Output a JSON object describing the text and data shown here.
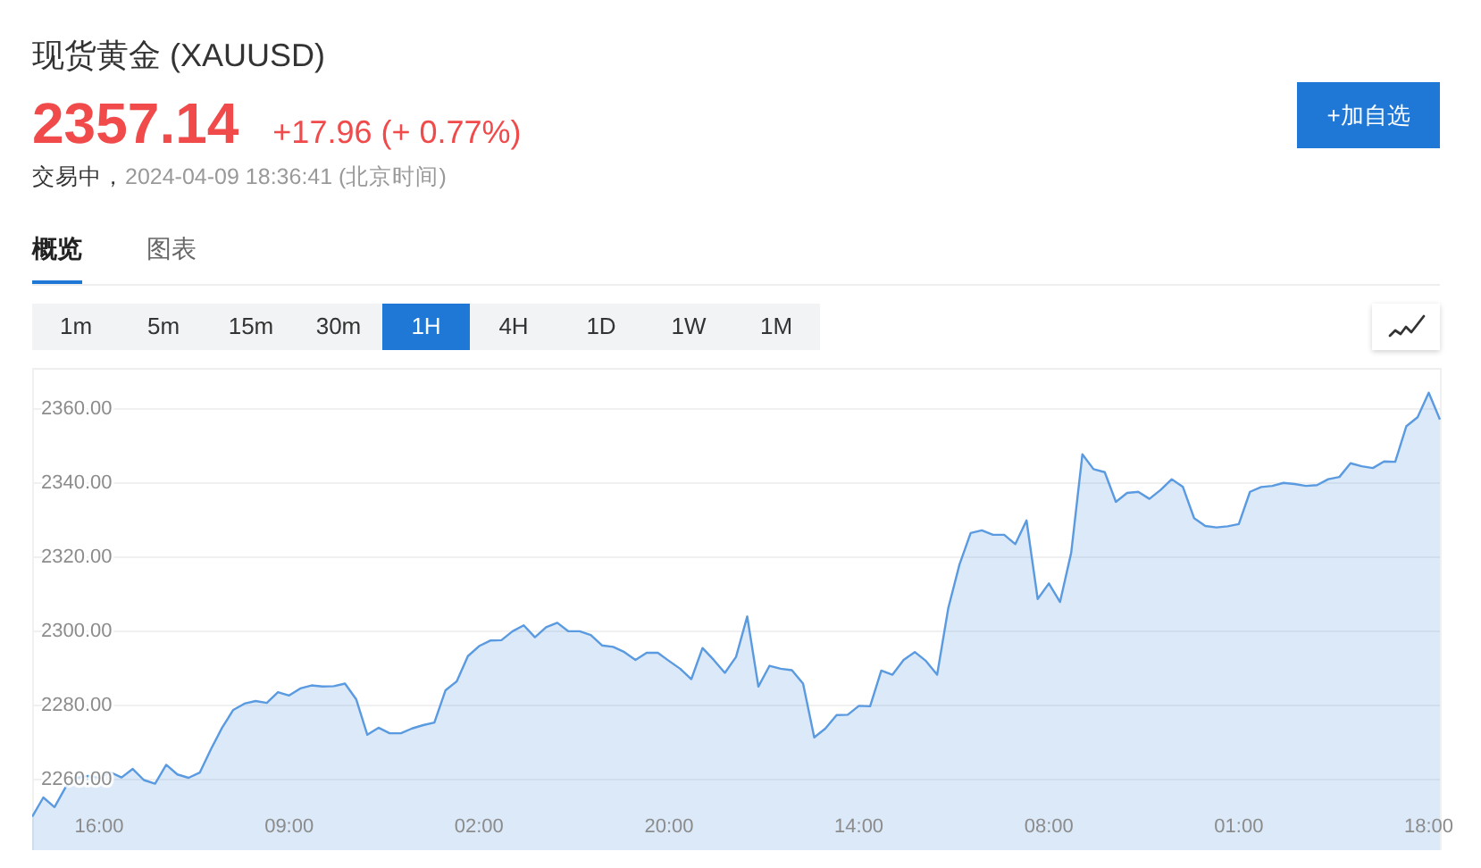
{
  "chart_data": {
    "type": "area",
    "title": "现货黄金 (XAUUSD)",
    "annotations": [
      "2357.14",
      "+17.96 (+ 0.77%)",
      "交易中，",
      "2024-04-09 18:36:41 (北京时间)",
      "概览",
      "图表",
      "1m",
      "5m",
      "15m",
      "30m",
      "1H",
      "4H",
      "1D",
      "1W",
      "1M",
      "+加自选"
    ],
    "categories": [
      null,
      null,
      null,
      null,
      null,
      null,
      "16:00",
      null,
      null,
      null,
      null,
      null,
      null,
      null,
      null,
      null,
      null,
      null,
      null,
      null,
      null,
      null,
      null,
      "09:00",
      null,
      null,
      null,
      null,
      null,
      null,
      null,
      null,
      null,
      null,
      null,
      null,
      null,
      null,
      null,
      null,
      "02:00",
      null,
      null,
      null,
      null,
      null,
      null,
      null,
      null,
      null,
      null,
      null,
      null,
      null,
      null,
      null,
      null,
      "20:00",
      null,
      null,
      null,
      null,
      null,
      null,
      null,
      null,
      null,
      null,
      null,
      null,
      null,
      null,
      null,
      null,
      "14:00",
      null,
      null,
      null,
      null,
      null,
      null,
      null,
      null,
      null,
      null,
      null,
      null,
      null,
      null,
      null,
      null,
      "08:00",
      null,
      null,
      null,
      null,
      null,
      null,
      null,
      null,
      null,
      null,
      null,
      null,
      null,
      null,
      null,
      null,
      "01:00",
      null,
      null,
      null,
      null,
      null,
      null,
      null,
      null,
      null,
      null,
      null,
      null,
      null,
      null,
      null,
      null,
      "18:00",
      null
    ],
    "values": [
      2250.0,
      2255.2,
      2252.6,
      2258.0,
      2260.5,
      2261.0,
      2260.5,
      2262.0,
      2260.6,
      2262.9,
      2259.9,
      2258.9,
      2264.0,
      2261.4,
      2260.5,
      2261.9,
      2268.2,
      2274.0,
      2278.8,
      2280.5,
      2281.2,
      2280.7,
      2283.6,
      2282.7,
      2284.6,
      2285.4,
      2285.1,
      2285.2,
      2285.9,
      2281.7,
      2272.1,
      2274.0,
      2272.5,
      2272.5,
      2273.8,
      2274.7,
      2275.4,
      2284.1,
      2286.5,
      2293.3,
      2296.0,
      2297.5,
      2297.6,
      2300.0,
      2301.6,
      2298.4,
      2301.1,
      2302.3,
      2300.0,
      2300.0,
      2299.0,
      2296.2,
      2295.8,
      2294.4,
      2292.3,
      2294.2,
      2294.2,
      2292.0,
      2289.9,
      2287.1,
      2295.5,
      2292.3,
      2288.8,
      2293.1,
      2304.0,
      2285.1,
      2290.7,
      2289.9,
      2289.5,
      2285.9,
      2271.4,
      2273.8,
      2277.4,
      2277.5,
      2279.9,
      2279.8,
      2289.4,
      2288.3,
      2292.3,
      2294.4,
      2292.0,
      2288.3,
      2306.3,
      2318.0,
      2326.5,
      2327.2,
      2326.0,
      2326.0,
      2323.5,
      2329.9,
      2308.7,
      2312.9,
      2307.9,
      2321.2,
      2347.7,
      2343.7,
      2342.9,
      2334.9,
      2337.3,
      2337.6,
      2335.7,
      2338.1,
      2341.0,
      2338.9,
      2330.5,
      2328.4,
      2328.0,
      2328.3,
      2328.9,
      2337.6,
      2338.9,
      2339.2,
      2340.0,
      2339.7,
      2339.2,
      2339.4,
      2341.0,
      2341.6,
      2345.3,
      2344.5,
      2344.0,
      2345.8,
      2345.7,
      2355.3,
      2357.7,
      2364.3,
      2357.1
    ],
    "color": "#5a9ae0",
    "ylim": [
      2241,
      2371
    ],
    "yticks": [
      {
        "value": 2260,
        "label": "2260.00"
      },
      {
        "value": 2280,
        "label": "2280.00"
      },
      {
        "value": 2300,
        "label": "2300.00"
      },
      {
        "value": 2320,
        "label": "2320.00"
      },
      {
        "value": 2340,
        "label": "2340.00"
      },
      {
        "value": 2360,
        "label": "2360.00"
      }
    ],
    "grid": "y",
    "marker": "none"
  }
}
